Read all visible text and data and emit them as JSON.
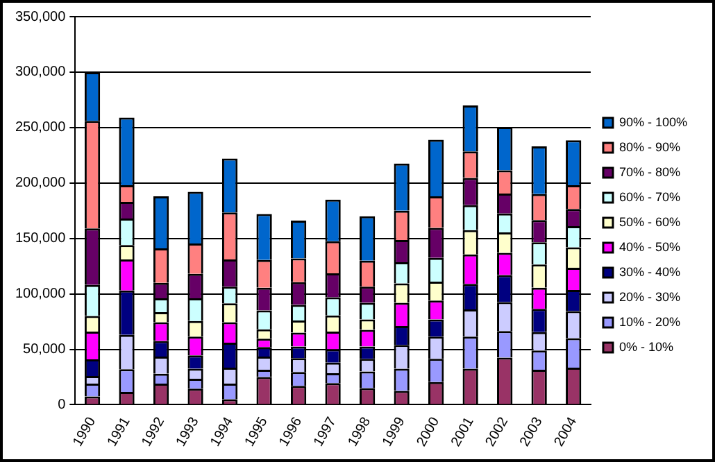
{
  "chart_data": {
    "type": "bar",
    "stacked": true,
    "categories": [
      "1990",
      "1991",
      "1992",
      "1993",
      "1994",
      "1995",
      "1996",
      "1997",
      "1998",
      "1999",
      "2000",
      "2001",
      "2002",
      "2003",
      "2004"
    ],
    "series": [
      {
        "name": "0% - 10%",
        "color": "#993366",
        "values": [
          7500,
          11500,
          19000,
          14500,
          5000,
          25000,
          17000,
          19500,
          15000,
          12500,
          20500,
          32500,
          42500,
          31500,
          33500
        ]
      },
      {
        "name": "10% - 20%",
        "color": "#9999ff",
        "values": [
          11500,
          20500,
          9000,
          9000,
          14000,
          6500,
          12500,
          9000,
          15000,
          20000,
          21000,
          29000,
          24000,
          17500,
          26500
        ]
      },
      {
        "name": "20% - 30%",
        "color": "#ccccff",
        "values": [
          7000,
          31000,
          15500,
          9000,
          14500,
          12000,
          12500,
          9500,
          11500,
          21500,
          20000,
          24500,
          26000,
          16500,
          24500
        ]
      },
      {
        "name": "30% - 40%",
        "color": "#000080",
        "values": [
          15000,
          40000,
          14000,
          12000,
          22500,
          8500,
          10500,
          12000,
          11000,
          17000,
          15500,
          23000,
          24500,
          21000,
          19000
        ]
      },
      {
        "name": "40% - 50%",
        "color": "#ff00ff",
        "values": [
          25000,
          28000,
          17000,
          17000,
          18500,
          7500,
          12500,
          16000,
          15000,
          21000,
          17000,
          26500,
          20000,
          19000,
          20000
        ]
      },
      {
        "name": "50% - 60%",
        "color": "#ffffcc",
        "values": [
          14000,
          13000,
          9000,
          14000,
          17000,
          8500,
          11000,
          14500,
          9500,
          17500,
          17000,
          22000,
          18500,
          21000,
          18500
        ]
      },
      {
        "name": "60% - 70%",
        "color": "#ccffff",
        "values": [
          28000,
          24000,
          12500,
          20500,
          15000,
          17000,
          14000,
          16500,
          15000,
          19000,
          21500,
          22500,
          17000,
          20000,
          19000
        ]
      },
      {
        "name": "70% - 80%",
        "color": "#660066",
        "values": [
          51000,
          15000,
          14000,
          22000,
          24500,
          20500,
          20500,
          21500,
          14500,
          20000,
          27000,
          24500,
          18000,
          20000,
          15500
        ]
      },
      {
        "name": "80% - 90%",
        "color": "#ff8080",
        "values": [
          97000,
          15000,
          31000,
          27500,
          42500,
          25000,
          21500,
          29000,
          23500,
          26500,
          28500,
          24000,
          21000,
          23500,
          21500
        ]
      },
      {
        "name": "90% - 100%",
        "color": "#0066cc",
        "values": [
          44000,
          61000,
          47000,
          46500,
          48500,
          41500,
          34000,
          37500,
          40000,
          42500,
          51000,
          41500,
          39000,
          43000,
          40500
        ]
      }
    ],
    "ylim": [
      0,
      350000
    ],
    "yticks": [
      {
        "value": 0,
        "label": "0"
      },
      {
        "value": 50000,
        "label": "50,000"
      },
      {
        "value": 100000,
        "label": "100,000"
      },
      {
        "value": 150000,
        "label": "150,000"
      },
      {
        "value": 200000,
        "label": "200,000"
      },
      {
        "value": 250000,
        "label": "250,000"
      },
      {
        "value": 300000,
        "label": "300,000"
      },
      {
        "value": 350000,
        "label": "350,000"
      }
    ],
    "grid": "y",
    "legend": "right"
  }
}
